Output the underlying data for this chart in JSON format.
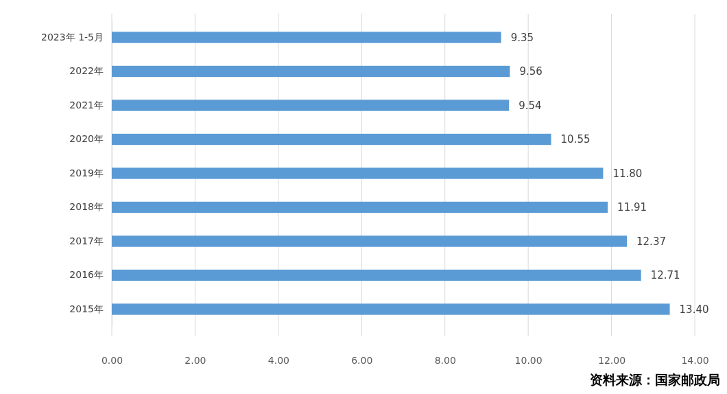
{
  "chart_data": {
    "type": "bar",
    "orientation": "horizontal",
    "categories": [
      "2023年 1-5月",
      "2022年",
      "2021年",
      "2020年",
      "2019年",
      "2018年",
      "2017年",
      "2016年",
      "2015年"
    ],
    "values": [
      9.35,
      9.56,
      9.54,
      10.55,
      11.8,
      11.91,
      12.37,
      12.71,
      13.4
    ],
    "value_labels": [
      "9.35",
      "9.56",
      "9.54",
      "10.55",
      "11.80",
      "11.91",
      "12.37",
      "12.71",
      "13.40"
    ],
    "color": "#5b9bd5",
    "xlim": [
      0,
      14
    ],
    "xticks": [
      {
        "value": 0,
        "label": "0.00"
      },
      {
        "value": 2,
        "label": "2.00"
      },
      {
        "value": 4,
        "label": "4.00"
      },
      {
        "value": 6,
        "label": "6.00"
      },
      {
        "value": 8,
        "label": "8.00"
      },
      {
        "value": 10,
        "label": "10.00"
      },
      {
        "value": 12,
        "label": "12.00"
      },
      {
        "value": 14,
        "label": "14.00"
      }
    ],
    "grid": "x",
    "annotations": [
      "资料来源：国家邮政局"
    ]
  }
}
